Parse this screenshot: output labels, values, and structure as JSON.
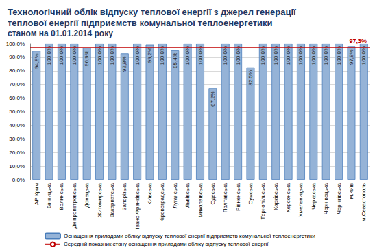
{
  "chart_data": {
    "type": "bar",
    "title": [
      "Технологічний облік відпуску теплової енергії з джерел генерації",
      "теплової енергії підприємств комунальної теплоенергетики"
    ],
    "subtitle": "станом на 01.01.2014 року",
    "categories": [
      "АР Крим",
      "Вінницька",
      "Волинська",
      "Дніпропетровська",
      "Донецька",
      "Житомирська",
      "Закарпатська",
      "Запорізька",
      "Івано-Франківська",
      "Київська",
      "Кіровоградська",
      "Луганська",
      "Львівська",
      "Миколаївська",
      "Одеська",
      "Полтавська",
      "Рівненська",
      "Сумська",
      "Тернопільська",
      "Харківська",
      "Херсонська",
      "Хмельницька",
      "Черкаська",
      "Чернівецька",
      "Чернігівська",
      "м.Київ",
      "м.Севастополь"
    ],
    "series": [
      {
        "name": "Оснащення приладами обліку відпуску теплової енергії підприємств комунальної теплоенергетики",
        "color": "#95b3d7",
        "values": [
          94.8,
          100,
          100,
          100,
          96.9,
          100,
          100,
          92.8,
          100,
          99.2,
          100,
          95.4,
          100,
          100,
          67.2,
          100,
          100,
          82.5,
          100,
          100,
          100,
          100,
          100,
          100,
          100,
          97.8,
          100
        ],
        "value_labels": [
          "94,8%",
          "100,0%",
          "100,0%",
          "100,0%",
          "96,9%",
          "100,0%",
          "100,0%",
          "92,8%",
          "100,0%",
          "99,2%",
          "100,0%",
          "95,4%",
          "100,0%",
          "100,0%",
          "67,2%",
          "100,0%",
          "100,0%",
          "82,5%",
          "100,0%",
          "100,0%",
          "100,0%",
          "100,0%",
          "100,0%",
          "100,0%",
          "100,0%",
          "97,8%",
          "100,0%"
        ]
      }
    ],
    "reference_line": {
      "name": "Середній показник стану оснащення приладами обліку відпуску теплової енергії",
      "type": "line",
      "color": "#c00000",
      "value": 97.3,
      "label": "97,3%"
    },
    "ylim": [
      0,
      100
    ],
    "yticks": [
      {
        "value": 0,
        "label": "0,0%"
      },
      {
        "value": 10,
        "label": "10,0%"
      },
      {
        "value": 20,
        "label": "20,0%"
      },
      {
        "value": 30,
        "label": "30,0%"
      },
      {
        "value": 40,
        "label": "40,0%"
      },
      {
        "value": 50,
        "label": "50,0%"
      },
      {
        "value": 60,
        "label": "60,0%"
      },
      {
        "value": 70,
        "label": "70,0%"
      },
      {
        "value": 80,
        "label": "80,0%"
      },
      {
        "value": 90,
        "label": "90,0%"
      },
      {
        "value": 100,
        "label": "100,0%"
      }
    ],
    "grid": true,
    "data_labels": true,
    "legend": "bottom"
  }
}
